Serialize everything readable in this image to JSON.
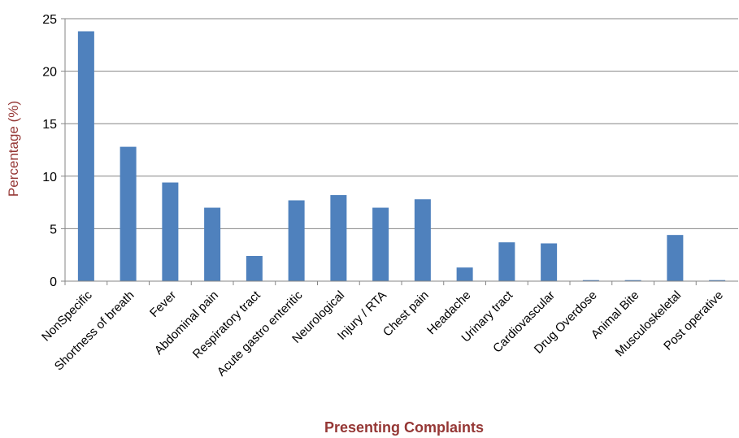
{
  "chart_data": {
    "type": "bar",
    "title": "",
    "xlabel": "Presenting Complaints",
    "ylabel": "Percentage (%)",
    "ylim": [
      0,
      25
    ],
    "yticks": [
      0,
      5,
      10,
      15,
      20,
      25
    ],
    "grid": true,
    "legend": "none",
    "categories": [
      "NonSpecific",
      "Shortness of breath",
      "Fever",
      "Abdominal pain",
      "Respiratory tract",
      "Acute gastro enteritic",
      "Neurological",
      "Injury / RTA",
      "Chest pain",
      "Headache",
      "Urinary tract",
      "Cardiovascular",
      "Drug Overdose",
      "Animal Bite",
      "Musculoskeletal",
      "Post operative"
    ],
    "values": [
      23.8,
      12.8,
      9.4,
      7.0,
      2.4,
      7.7,
      8.2,
      7.0,
      7.8,
      1.3,
      3.7,
      3.6,
      0.1,
      0.1,
      4.4,
      0.1
    ],
    "colors": {
      "bar": "#4F81BD",
      "grid": "#868686",
      "axis_title": "#953735"
    }
  }
}
